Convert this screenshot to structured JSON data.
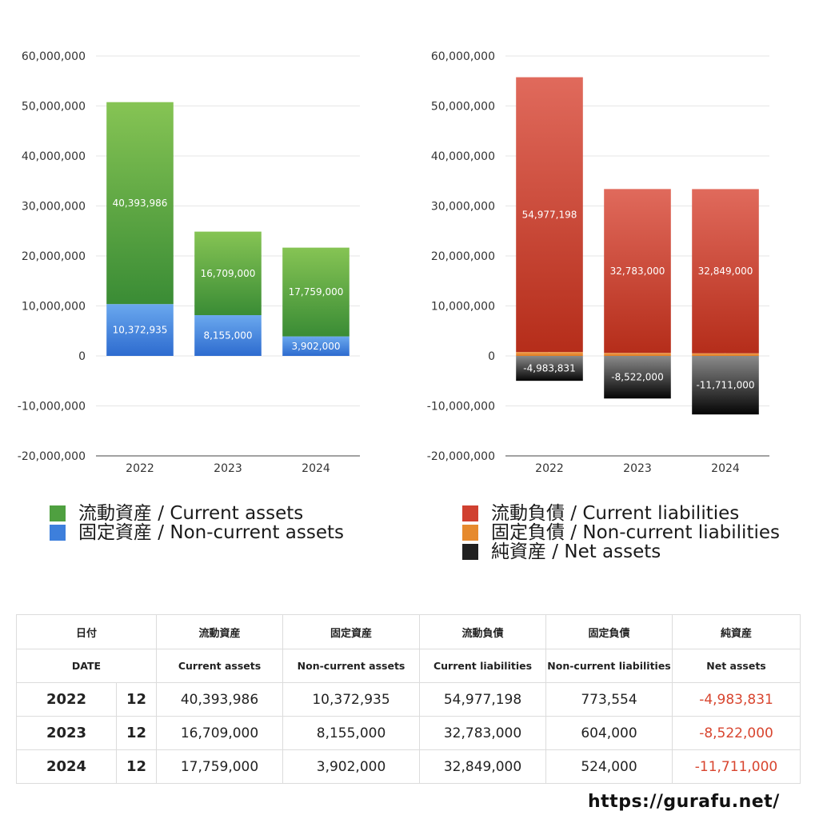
{
  "chart_data": [
    {
      "type": "bar",
      "stacked": true,
      "categories": [
        "2022",
        "2023",
        "2024"
      ],
      "series": [
        {
          "name": "固定資産 / Non-current assets",
          "values": [
            10372935,
            8155000,
            3902000
          ],
          "labels": [
            "10,372,935",
            "8,155,000",
            "3,902,000"
          ],
          "color_top": "#6aa8ee",
          "color_bottom": "#2d6bcf"
        },
        {
          "name": "流動資産 / Current assets",
          "values": [
            40393986,
            16709000,
            17759000
          ],
          "labels": [
            "40,393,986",
            "16,709,000",
            "17,759,000"
          ],
          "color_top": "#86c454",
          "color_bottom": "#3a8c35"
        }
      ],
      "ylim": [
        -20000000,
        60000000
      ],
      "yticks": [
        60000000,
        50000000,
        40000000,
        30000000,
        20000000,
        10000000,
        0,
        -10000000,
        -20000000
      ],
      "ytick_labels": [
        "60,000,000",
        "50,000,000",
        "40,000,000",
        "30,000,000",
        "20,000,000",
        "10,000,000",
        "0",
        "-10,000,000",
        "-20,000,000"
      ],
      "grid": true,
      "legend_position": "bottom",
      "title": "",
      "xlabel": "",
      "ylabel": ""
    },
    {
      "type": "bar",
      "stacked": true,
      "categories": [
        "2022",
        "2023",
        "2024"
      ],
      "series": [
        {
          "name": "純資産 / Net assets",
          "values": [
            -4983831,
            -8522000,
            -11711000
          ],
          "labels": [
            "-4,983,831",
            "-8,522,000",
            "-11,711,000"
          ],
          "color_top": "#8a8a8a",
          "color_bottom": "#050505"
        },
        {
          "name": "固定負債 / Non-current liabilities",
          "values": [
            773554,
            604000,
            524000
          ],
          "labels": [
            "773,554",
            "604,000",
            "524,000"
          ],
          "color_top": "#f0a050",
          "color_bottom": "#e07a20"
        },
        {
          "name": "流動負債 / Current liabilities",
          "values": [
            54977198,
            32783000,
            32849000
          ],
          "labels": [
            "54,977,198",
            "32,783,000",
            "32,849,000"
          ],
          "color_top": "#e06a5c",
          "color_bottom": "#b52d1a"
        }
      ],
      "ylim": [
        -20000000,
        60000000
      ],
      "yticks": [
        60000000,
        50000000,
        40000000,
        30000000,
        20000000,
        10000000,
        0,
        -10000000,
        -20000000
      ],
      "ytick_labels": [
        "60,000,000",
        "50,000,000",
        "40,000,000",
        "30,000,000",
        "20,000,000",
        "10,000,000",
        "0",
        "-10,000,000",
        "-20,000,000"
      ],
      "grid": true,
      "legend_position": "bottom",
      "title": "",
      "xlabel": "",
      "ylabel": ""
    }
  ],
  "legend_left": [
    {
      "label": "流動資産 / Current assets",
      "color": "#4fa040"
    },
    {
      "label": "固定資産 / Non-current assets",
      "color": "#3d7fdc"
    }
  ],
  "legend_right": [
    {
      "label": "流動負債 / Current liabilities",
      "color": "#d04030"
    },
    {
      "label": "固定負債 / Non-current liabilities",
      "color": "#e68a2e"
    },
    {
      "label": "純資産 / Net assets",
      "color": "#202020"
    }
  ],
  "table": {
    "header_jp": [
      "日付",
      "流動資産",
      "固定資産",
      "流動負債",
      "固定負債",
      "純資産"
    ],
    "header_en": [
      "DATE",
      "Current assets",
      "Non-current assets",
      "Current liabilities",
      "Non-current liabilities",
      "Net assets"
    ],
    "rows": [
      {
        "year": "2022",
        "month": "12",
        "current_assets": "40,393,986",
        "noncurrent_assets": "10,372,935",
        "current_liabilities": "54,977,198",
        "noncurrent_liabilities": "773,554",
        "net_assets": "-4,983,831"
      },
      {
        "year": "2023",
        "month": "12",
        "current_assets": "16,709,000",
        "noncurrent_assets": "8,155,000",
        "current_liabilities": "32,783,000",
        "noncurrent_liabilities": "604,000",
        "net_assets": "-8,522,000"
      },
      {
        "year": "2024",
        "month": "12",
        "current_assets": "17,759,000",
        "noncurrent_assets": "3,902,000",
        "current_liabilities": "32,849,000",
        "noncurrent_liabilities": "524,000",
        "net_assets": "-11,711,000"
      }
    ],
    "negative_color": "#d8452f"
  },
  "site_url": "https://gurafu.net/"
}
